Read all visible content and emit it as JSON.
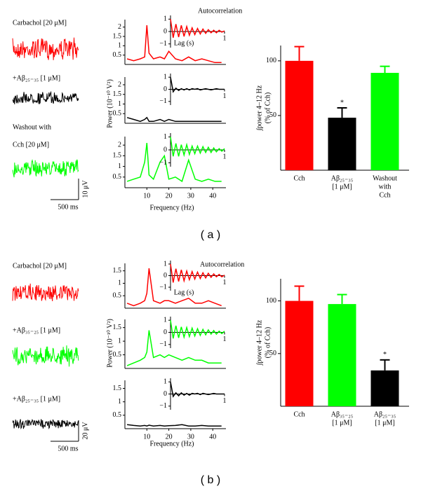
{
  "panels": [
    {
      "label": "( a )",
      "traces": [
        {
          "label": [
            "Carbachol [20 μM]"
          ],
          "color": "#ff0000"
        },
        {
          "label": [
            "+Aβ₂₅₋₃₅ [1 μM]"
          ],
          "color": "#000000"
        },
        {
          "label": [
            "Washout with",
            "Cch [20 μM]"
          ],
          "color": "#00ff00"
        }
      ],
      "time_scale": "500 ms",
      "amplitude_scale": "10 μV"
    },
    {
      "label": "( b )",
      "traces": [
        {
          "label": [
            "Carbachol [20 μM]"
          ],
          "color": "#ff0000"
        },
        {
          "label": [
            "+Aβ₃₅₋₂₅ [1 μM]"
          ],
          "color": "#00ff00"
        },
        {
          "label": [
            "+Aβ₂₅₋₃₅ [1 μM]"
          ],
          "color": "#000000"
        }
      ],
      "time_scale": "500 ms",
      "amplitude_scale": "20 μV"
    }
  ],
  "chart_data": [
    {
      "type": "line",
      "x": [
        1,
        4,
        7,
        9,
        10,
        11,
        13,
        16,
        18,
        20,
        23,
        26,
        29,
        32,
        35,
        38,
        41,
        44
      ],
      "xlim": [
        0,
        46
      ],
      "ylim": [
        0,
        2.4
      ],
      "yticks": [
        0.5,
        1,
        1.5,
        2
      ],
      "series": [
        {
          "color": "#ff0000",
          "values": [
            0.3,
            0.2,
            0.3,
            0.4,
            2.1,
            0.6,
            0.3,
            0.4,
            0.3,
            0.7,
            0.3,
            0.2,
            0.4,
            0.2,
            0.3,
            0.2,
            0.1,
            0.1
          ]
        }
      ]
    },
    {
      "type": "line",
      "title": "Autocorrelation",
      "xlabel": "Lag (s)",
      "x": [
        0,
        0.05,
        0.1,
        0.15,
        0.2,
        0.25,
        0.3,
        0.35,
        0.4,
        0.45,
        0.5,
        0.55,
        0.6,
        0.65,
        0.7,
        0.75,
        0.8,
        0.85,
        0.9,
        0.95,
        1
      ],
      "xlim": [
        0,
        1
      ],
      "ylim": [
        -1.3,
        1.3
      ],
      "xticks": [
        1
      ],
      "yticks": [
        {
          "value": -1,
          "label": "−1"
        },
        0,
        1
      ],
      "series": [
        {
          "color": "#ff0000",
          "values": [
            1,
            -0.5,
            0.6,
            -0.45,
            0.5,
            -0.4,
            0.4,
            -0.3,
            0.3,
            -0.25,
            0.25,
            -0.2,
            0.2,
            -0.15,
            0.15,
            -0.1,
            0.1,
            -0.1,
            0.1,
            -0.05,
            0.05
          ]
        }
      ]
    },
    {
      "type": "line",
      "ylabel": "Power (10⁻¹⁰ V²)",
      "x": [
        1,
        4,
        7,
        9,
        10,
        11,
        13,
        16,
        18,
        20,
        23,
        26,
        29,
        32,
        35,
        38,
        41,
        44
      ],
      "xlim": [
        0,
        46
      ],
      "ylim": [
        0,
        2.4
      ],
      "yticks": [
        0.5,
        1,
        1.5,
        2
      ],
      "series": [
        {
          "color": "#000000",
          "values": [
            0.3,
            0.2,
            0.1,
            0.2,
            0.3,
            0.1,
            0.1,
            0.2,
            0.1,
            0.2,
            0.1,
            0.1,
            0.1,
            0.1,
            0.1,
            0.1,
            0.1,
            0.1
          ]
        }
      ]
    },
    {
      "type": "line",
      "x": [
        0,
        0.05,
        0.1,
        0.15,
        0.2,
        0.25,
        0.3,
        0.35,
        0.4,
        0.45,
        0.5,
        0.55,
        0.6,
        0.65,
        0.7,
        0.75,
        0.8,
        0.85,
        0.9,
        0.95,
        1
      ],
      "xlim": [
        0,
        1
      ],
      "ylim": [
        -1.3,
        1.3
      ],
      "xticks": [
        1
      ],
      "yticks": [
        {
          "value": -1,
          "label": "−1"
        },
        0,
        1
      ],
      "series": [
        {
          "color": "#000000",
          "values": [
            1,
            -0.2,
            0.1,
            -0.1,
            0.05,
            -0.05,
            0.05,
            -0.05,
            0.05,
            0,
            0.05,
            -0.05,
            0,
            0.05,
            0,
            -0.05,
            0,
            0.05,
            0,
            0,
            0
          ]
        }
      ]
    },
    {
      "type": "line",
      "xlabel": "Frequency (Hz)",
      "x": [
        1,
        4,
        7,
        9,
        10,
        11,
        13,
        16,
        18,
        20,
        23,
        26,
        29,
        32,
        35,
        38,
        41,
        44
      ],
      "xlim": [
        0,
        46
      ],
      "ylim": [
        0,
        2.4
      ],
      "xticks": [
        10,
        20,
        30,
        40
      ],
      "yticks": [
        0.5,
        1,
        1.5,
        2
      ],
      "series": [
        {
          "color": "#00ff00",
          "values": [
            0.3,
            0.4,
            0.5,
            1.2,
            2.1,
            0.6,
            0.4,
            1.2,
            1.5,
            0.4,
            0.5,
            0.3,
            1.3,
            0.4,
            0.3,
            0.4,
            0.3,
            0.3
          ]
        }
      ]
    },
    {
      "type": "line",
      "x": [
        0,
        0.05,
        0.1,
        0.15,
        0.2,
        0.25,
        0.3,
        0.35,
        0.4,
        0.45,
        0.5,
        0.55,
        0.6,
        0.65,
        0.7,
        0.75,
        0.8,
        0.85,
        0.9,
        0.95,
        1
      ],
      "xlim": [
        0,
        1
      ],
      "ylim": [
        -1.3,
        1.3
      ],
      "xticks": [
        1
      ],
      "yticks": [
        {
          "value": -1,
          "label": "−1"
        },
        0,
        1
      ],
      "series": [
        {
          "color": "#00ff00",
          "values": [
            1,
            -0.5,
            0.5,
            -0.5,
            0.4,
            -0.4,
            0.4,
            -0.35,
            0.3,
            -0.3,
            0.3,
            -0.25,
            0.25,
            -0.2,
            0.2,
            -0.2,
            0.15,
            -0.15,
            0.1,
            -0.1,
            0.1
          ]
        }
      ]
    },
    {
      "type": "bar",
      "ylabel": [
        "∫power 4–12 Hz",
        "(% of Cch)"
      ],
      "categories": [
        [
          "Cch"
        ],
        [
          "Aβ₂₅₋₃₅",
          "[1 μM]"
        ],
        [
          "Washout",
          "with",
          "Cch"
        ]
      ],
      "values": [
        100,
        48,
        89
      ],
      "errors": [
        13,
        9,
        6
      ],
      "colors": [
        "#ff0000",
        "#000000",
        "#00ff00"
      ],
      "significance": [
        null,
        "*",
        null
      ],
      "ylim": [
        0,
        114
      ],
      "yticks": [
        50,
        100
      ]
    },
    {
      "type": "line",
      "x": [
        1,
        4,
        7,
        9,
        10,
        11,
        13,
        16,
        18,
        20,
        23,
        26,
        29,
        32,
        35,
        38,
        41,
        44
      ],
      "xlim": [
        0,
        46
      ],
      "ylim": [
        0,
        1.8
      ],
      "yticks": [
        0.5,
        1,
        1.5
      ],
      "series": [
        {
          "color": "#ff0000",
          "values": [
            0.2,
            0.1,
            0.2,
            0.3,
            0.6,
            1.6,
            0.3,
            0.2,
            0.3,
            0.3,
            0.2,
            0.3,
            0.4,
            0.2,
            0.2,
            0.3,
            0.2,
            0.1
          ]
        }
      ]
    },
    {
      "type": "line",
      "title": "Autocorrelation",
      "xlabel": "Lag (s)",
      "x": [
        0,
        0.05,
        0.1,
        0.15,
        0.2,
        0.25,
        0.3,
        0.35,
        0.4,
        0.45,
        0.5,
        0.55,
        0.6,
        0.65,
        0.7,
        0.75,
        0.8,
        0.85,
        0.9,
        0.95,
        1
      ],
      "xlim": [
        0,
        1
      ],
      "ylim": [
        -1.3,
        1.3
      ],
      "xticks": [
        1
      ],
      "yticks": [
        {
          "value": -1,
          "label": "−1"
        },
        0,
        1
      ],
      "series": [
        {
          "color": "#ff0000",
          "values": [
            1,
            -0.6,
            0.6,
            -0.5,
            0.5,
            -0.45,
            0.4,
            -0.35,
            0.35,
            -0.3,
            0.3,
            -0.25,
            0.25,
            -0.2,
            0.2,
            -0.15,
            0.15,
            -0.1,
            0.1,
            -0.1,
            0.05
          ]
        }
      ]
    },
    {
      "type": "line",
      "ylabel": "Power (10⁻¹⁰ V²)",
      "x": [
        1,
        4,
        7,
        9,
        10,
        11,
        13,
        16,
        18,
        20,
        23,
        26,
        29,
        32,
        35,
        38,
        41,
        44
      ],
      "xlim": [
        0,
        46
      ],
      "ylim": [
        0,
        1.8
      ],
      "yticks": [
        0.5,
        1,
        1.5
      ],
      "series": [
        {
          "color": "#00ff00",
          "values": [
            0.1,
            0.2,
            0.3,
            0.4,
            0.6,
            1.4,
            0.4,
            0.5,
            0.4,
            0.5,
            0.4,
            0.3,
            0.4,
            0.3,
            0.3,
            0.2,
            0.2,
            0.2
          ]
        }
      ]
    },
    {
      "type": "line",
      "x": [
        0,
        0.05,
        0.1,
        0.15,
        0.2,
        0.25,
        0.3,
        0.35,
        0.4,
        0.45,
        0.5,
        0.55,
        0.6,
        0.65,
        0.7,
        0.75,
        0.8,
        0.85,
        0.9,
        0.95,
        1
      ],
      "xlim": [
        0,
        1
      ],
      "ylim": [
        -1.3,
        1.3
      ],
      "xticks": [
        1
      ],
      "yticks": [
        {
          "value": -1,
          "label": "−1"
        },
        0,
        1
      ],
      "series": [
        {
          "color": "#00ff00",
          "values": [
            1,
            -0.5,
            0.55,
            -0.45,
            0.45,
            -0.4,
            0.4,
            -0.35,
            0.35,
            -0.3,
            0.3,
            -0.25,
            0.25,
            -0.2,
            0.2,
            -0.15,
            0.15,
            -0.15,
            0.1,
            -0.1,
            0.1
          ]
        }
      ]
    },
    {
      "type": "line",
      "xlabel": "Frequency (Hz)",
      "x": [
        1,
        4,
        7,
        9,
        10,
        11,
        13,
        16,
        18,
        20,
        23,
        26,
        29,
        32,
        35,
        38,
        41,
        44
      ],
      "xlim": [
        0,
        46
      ],
      "ylim": [
        0,
        1.8
      ],
      "xticks": [
        10,
        20,
        30,
        40
      ],
      "yticks": [
        0.5,
        1,
        1.5
      ],
      "series": [
        {
          "color": "#000000",
          "values": [
            0.15,
            0.12,
            0.1,
            0.12,
            0.1,
            0.13,
            0.1,
            0.12,
            0.1,
            0.11,
            0.12,
            0.15,
            0.1,
            0.1,
            0.12,
            0.1,
            0.1,
            0.1
          ]
        }
      ]
    },
    {
      "type": "line",
      "x": [
        0,
        0.05,
        0.1,
        0.15,
        0.2,
        0.25,
        0.3,
        0.35,
        0.4,
        0.45,
        0.5,
        0.55,
        0.6,
        0.65,
        0.7,
        0.75,
        0.8,
        0.85,
        0.9,
        0.95,
        1
      ],
      "xlim": [
        0,
        1
      ],
      "ylim": [
        -1.3,
        1.3
      ],
      "xticks": [
        1
      ],
      "yticks": [
        {
          "value": -1,
          "label": "−1"
        },
        0,
        1
      ],
      "series": [
        {
          "color": "#000000",
          "values": [
            1,
            -0.2,
            0.1,
            -0.15,
            0.1,
            -0.1,
            0.05,
            -0.1,
            0.05,
            0,
            0.05,
            -0.05,
            0.05,
            0,
            -0.05,
            0,
            0.05,
            0,
            0,
            0,
            0
          ]
        }
      ]
    },
    {
      "type": "bar",
      "ylabel": [
        "∫power 4–12 Hz",
        "(% of Cch)"
      ],
      "categories": [
        [
          "Cch"
        ],
        [
          "Aβ₃₅₋₂₅",
          "[1 μM]"
        ],
        [
          "Aβ₂₅₋₃₅",
          "[1 μM]"
        ]
      ],
      "values": [
        100,
        97,
        34
      ],
      "errors": [
        14,
        9,
        10
      ],
      "colors": [
        "#ff0000",
        "#00ff00",
        "#000000"
      ],
      "significance": [
        null,
        null,
        "*"
      ],
      "ylim": [
        0,
        121
      ],
      "yticks": [
        50,
        100
      ]
    }
  ]
}
